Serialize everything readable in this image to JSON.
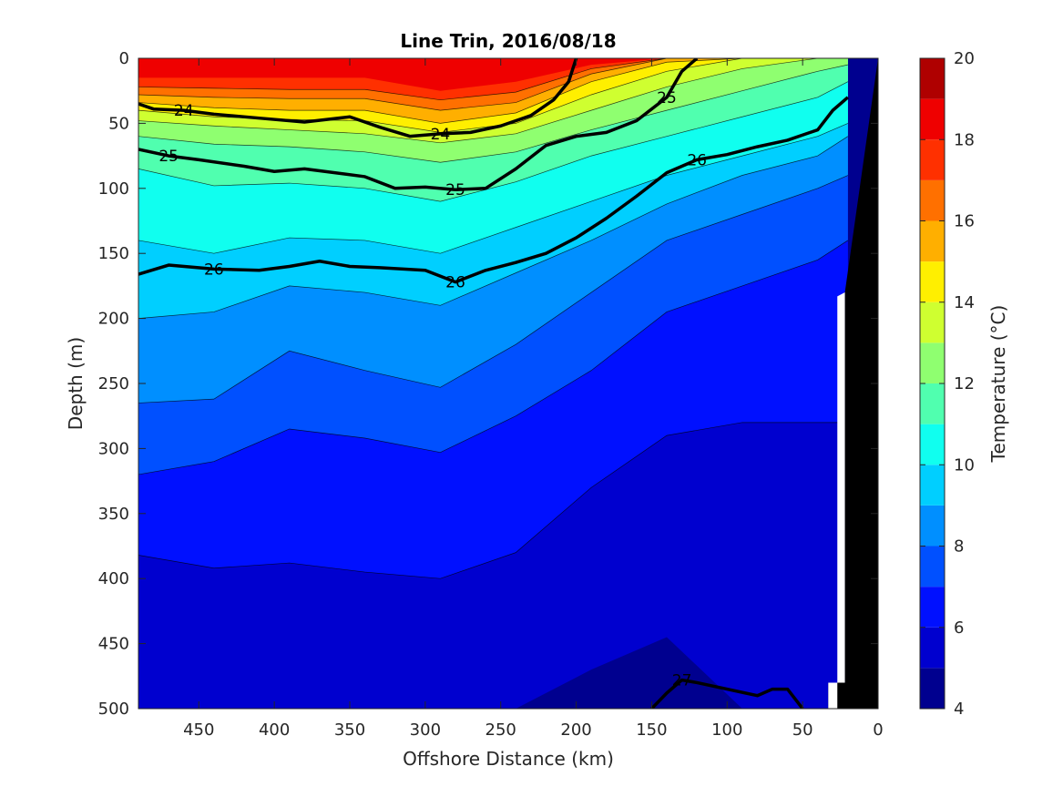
{
  "chart_data": {
    "type": "heatmap",
    "title": "Line Trin, 2016/08/18",
    "xlabel": "Offshore Distance (km)",
    "ylabel": "Depth (m)",
    "colorbar_label": "Temperature (°C)",
    "xlim": [
      490,
      0
    ],
    "ylim": [
      0,
      500
    ],
    "x_reversed": true,
    "y_reversed": true,
    "xticks": [
      450,
      400,
      350,
      300,
      250,
      200,
      150,
      100,
      50,
      0
    ],
    "yticks": [
      0,
      50,
      100,
      150,
      200,
      250,
      300,
      350,
      400,
      450,
      500
    ],
    "colorbar": {
      "range": [
        4,
        20
      ],
      "ticks": [
        4,
        6,
        8,
        10,
        12,
        14,
        16,
        18,
        20
      ],
      "levels": [
        4,
        5,
        6,
        7,
        8,
        9,
        10,
        11,
        12,
        13,
        14,
        15,
        16,
        17,
        18,
        19,
        20
      ],
      "colors": [
        "#00008f",
        "#0000cf",
        "#0010ff",
        "#0050ff",
        "#008fff",
        "#00cfff",
        "#10ffef",
        "#50ffaf",
        "#8fff70",
        "#cfff30",
        "#ffef00",
        "#ffaf00",
        "#ff7000",
        "#ff3000",
        "#ef0000",
        "#af0000"
      ]
    },
    "isotherm_depths": {
      "x": [
        490,
        440,
        390,
        340,
        290,
        240,
        190,
        140,
        90,
        40,
        20
      ],
      "T17": [
        15,
        15,
        15,
        15,
        25,
        18,
        5,
        0,
        0,
        0,
        0
      ],
      "T16": [
        22,
        23,
        24,
        24,
        32,
        26,
        8,
        0,
        0,
        0,
        0
      ],
      "T15": [
        28,
        30,
        31,
        31,
        40,
        34,
        12,
        0,
        0,
        0,
        0
      ],
      "T14": [
        34,
        38,
        40,
        40,
        50,
        42,
        18,
        3,
        0,
        0,
        0
      ],
      "T13": [
        40,
        45,
        47,
        48,
        57,
        50,
        28,
        10,
        0,
        0,
        0
      ],
      "T12": [
        48,
        52,
        55,
        58,
        65,
        58,
        40,
        22,
        8,
        0,
        0
      ],
      "T11": [
        60,
        66,
        68,
        72,
        80,
        72,
        55,
        40,
        25,
        10,
        5
      ],
      "T10": [
        85,
        98,
        96,
        100,
        110,
        95,
        75,
        60,
        45,
        30,
        18
      ],
      "T9": [
        140,
        150,
        138,
        140,
        150,
        130,
        110,
        90,
        75,
        60,
        50
      ],
      "T8": [
        200,
        195,
        175,
        180,
        190,
        165,
        140,
        112,
        90,
        75,
        60
      ],
      "T7": [
        265,
        262,
        225,
        240,
        253,
        220,
        180,
        140,
        120,
        100,
        90
      ],
      "T6": [
        320,
        310,
        285,
        292,
        303,
        275,
        240,
        195,
        175,
        155,
        140
      ],
      "T5": [
        382,
        392,
        388,
        395,
        400,
        380,
        330,
        290,
        280,
        280,
        280
      ],
      "T4": [
        500,
        500,
        500,
        500,
        500,
        500,
        470,
        445,
        500,
        500,
        500
      ]
    },
    "density_contours": [
      {
        "label": "24",
        "x": [
          490,
          480,
          460,
          440,
          410,
          380,
          350,
          330,
          310,
          290,
          270,
          250,
          230,
          215,
          205,
          200
        ],
        "depth": [
          35,
          39,
          40,
          43,
          46,
          49,
          45,
          53,
          60,
          58,
          57,
          52,
          44,
          32,
          18,
          0
        ]
      },
      {
        "label": "25",
        "x": [
          490,
          470,
          450,
          420,
          400,
          380,
          340,
          320,
          300,
          280,
          260,
          240,
          220,
          200,
          180,
          160,
          140,
          130,
          120
        ],
        "depth": [
          70,
          75,
          78,
          83,
          87,
          85,
          91,
          100,
          99,
          101,
          100,
          85,
          67,
          60,
          57,
          48,
          30,
          10,
          0
        ]
      },
      {
        "label": "26",
        "x": [
          490,
          470,
          440,
          410,
          390,
          370,
          350,
          330,
          300,
          280,
          260,
          240,
          220,
          200,
          180,
          160,
          140,
          120,
          100,
          80,
          60,
          40,
          30,
          20
        ],
        "depth": [
          166,
          159,
          162,
          163,
          160,
          156,
          160,
          161,
          163,
          172,
          163,
          157,
          150,
          138,
          123,
          106,
          88,
          78,
          74,
          68,
          63,
          55,
          40,
          30
        ]
      },
      {
        "label": "27",
        "x": [
          150,
          140,
          130,
          120,
          100,
          80,
          70,
          60,
          50
        ],
        "depth": [
          500,
          488,
          478,
          480,
          485,
          490,
          485,
          485,
          500
        ]
      }
    ],
    "coastline": {
      "x": [
        47,
        33,
        33,
        22,
        22,
        0,
        0
      ],
      "depth": [
        500,
        500,
        480,
        480,
        180,
        0,
        500
      ]
    }
  }
}
